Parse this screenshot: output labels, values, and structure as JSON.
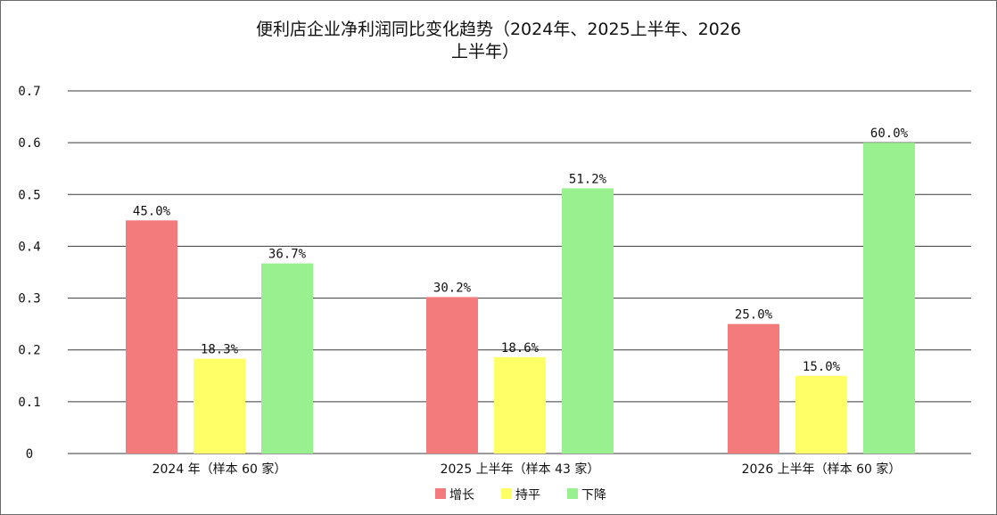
{
  "chart_data": {
    "type": "bar",
    "title_lines": [
      "便利店企业净利润同比变化趋势（2024年、2025上半年、2026",
      "上半年）"
    ],
    "categories": [
      "2024 年（样本 60 家）",
      "2025 上半年（样本 43 家）",
      "2026 上半年（样本 60 家）"
    ],
    "series": [
      {
        "name": "增长",
        "color": "#f47b7b",
        "values": [
          0.45,
          0.302,
          0.25
        ],
        "labels": [
          "45.0%",
          "30.2%",
          "25.0%"
        ]
      },
      {
        "name": "持平",
        "color": "#ffff66",
        "values": [
          0.183,
          0.186,
          0.15
        ],
        "labels": [
          "18.3%",
          "18.6%",
          "15.0%"
        ]
      },
      {
        "name": "下降",
        "color": "#99f08f",
        "values": [
          0.367,
          0.512,
          0.6
        ],
        "labels": [
          "36.7%",
          "51.2%",
          "60.0%"
        ]
      }
    ],
    "y_ticks": [
      "0",
      "0.1",
      "0.2",
      "0.3",
      "0.4",
      "0.5",
      "0.6",
      "0.7"
    ],
    "ylim": [
      0,
      0.7
    ],
    "grid": true,
    "legend_position": "bottom"
  }
}
